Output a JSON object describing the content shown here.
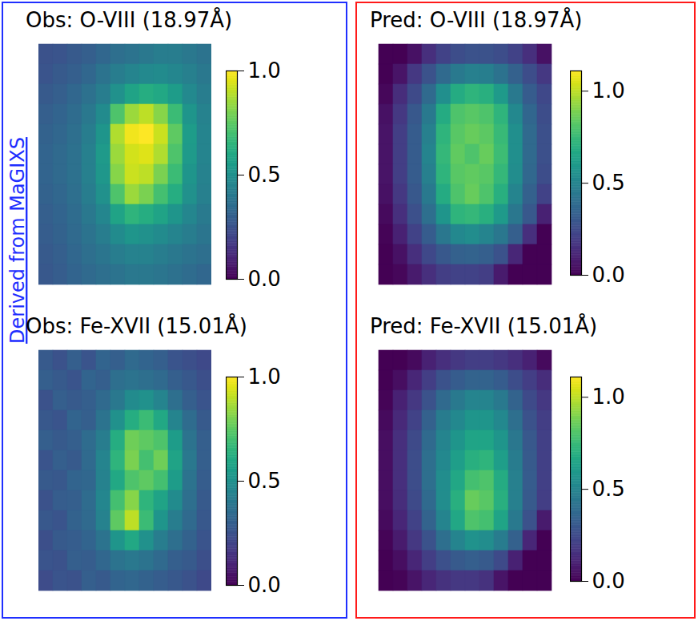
{
  "annotation": "Derived from MaGIXS",
  "chart_data": [
    {
      "type": "heatmap",
      "title": "Obs: O-VIII (18.97Å)",
      "color": "viridis",
      "tick_labels": false,
      "colorbar": {
        "range": [
          0,
          1
        ],
        "ticks": [
          {
            "value": 0,
            "label": "0.0"
          },
          {
            "value": 0.5,
            "label": "0.5"
          },
          {
            "value": 1,
            "label": "1.0"
          }
        ]
      },
      "cells": [
        [
          0.25,
          0.26,
          0.28,
          0.3,
          0.33,
          0.36,
          0.38,
          0.4,
          0.42,
          0.42,
          0.4,
          0.38
        ],
        [
          0.26,
          0.28,
          0.3,
          0.33,
          0.38,
          0.42,
          0.45,
          0.47,
          0.48,
          0.46,
          0.43,
          0.4
        ],
        [
          0.28,
          0.3,
          0.33,
          0.37,
          0.42,
          0.5,
          0.58,
          0.62,
          0.6,
          0.55,
          0.47,
          0.42
        ],
        [
          0.3,
          0.32,
          0.35,
          0.4,
          0.48,
          0.72,
          0.85,
          0.9,
          0.82,
          0.68,
          0.52,
          0.44
        ],
        [
          0.31,
          0.33,
          0.36,
          0.42,
          0.52,
          0.88,
          0.98,
          1.0,
          0.92,
          0.75,
          0.55,
          0.45
        ],
        [
          0.32,
          0.34,
          0.37,
          0.43,
          0.54,
          0.85,
          0.93,
          0.95,
          0.88,
          0.72,
          0.54,
          0.45
        ],
        [
          0.32,
          0.34,
          0.37,
          0.43,
          0.53,
          0.82,
          0.92,
          0.9,
          0.8,
          0.68,
          0.52,
          0.44
        ],
        [
          0.31,
          0.33,
          0.36,
          0.42,
          0.5,
          0.72,
          0.85,
          0.8,
          0.7,
          0.62,
          0.5,
          0.43
        ],
        [
          0.3,
          0.32,
          0.35,
          0.4,
          0.46,
          0.58,
          0.65,
          0.62,
          0.58,
          0.52,
          0.46,
          0.41
        ],
        [
          0.29,
          0.31,
          0.34,
          0.38,
          0.42,
          0.48,
          0.52,
          0.5,
          0.48,
          0.45,
          0.42,
          0.39
        ],
        [
          0.28,
          0.3,
          0.33,
          0.36,
          0.39,
          0.42,
          0.44,
          0.44,
          0.42,
          0.4,
          0.38,
          0.36
        ],
        [
          0.27,
          0.29,
          0.32,
          0.34,
          0.36,
          0.38,
          0.4,
          0.4,
          0.39,
          0.37,
          0.35,
          0.33
        ]
      ]
    },
    {
      "type": "heatmap",
      "title": "Obs: Fe-XVII (15.01Å)",
      "color": "viridis",
      "tick_labels": false,
      "colorbar": {
        "range": [
          0,
          1
        ],
        "ticks": [
          {
            "value": 0,
            "label": "0.0"
          },
          {
            "value": 0.5,
            "label": "0.5"
          },
          {
            "value": 1,
            "label": "1.0"
          }
        ]
      },
      "cells": [
        [
          0.28,
          0.25,
          0.3,
          0.26,
          0.32,
          0.3,
          0.34,
          0.32,
          0.3,
          0.26,
          0.24,
          0.22
        ],
        [
          0.3,
          0.28,
          0.26,
          0.32,
          0.3,
          0.36,
          0.38,
          0.36,
          0.34,
          0.3,
          0.27,
          0.24
        ],
        [
          0.25,
          0.3,
          0.28,
          0.3,
          0.34,
          0.4,
          0.48,
          0.5,
          0.45,
          0.36,
          0.3,
          0.26
        ],
        [
          0.27,
          0.26,
          0.32,
          0.3,
          0.38,
          0.5,
          0.62,
          0.68,
          0.6,
          0.45,
          0.35,
          0.28
        ],
        [
          0.3,
          0.28,
          0.3,
          0.35,
          0.42,
          0.62,
          0.78,
          0.75,
          0.72,
          0.55,
          0.38,
          0.3
        ],
        [
          0.26,
          0.3,
          0.28,
          0.34,
          0.45,
          0.65,
          0.8,
          0.7,
          0.78,
          0.58,
          0.4,
          0.3
        ],
        [
          0.28,
          0.27,
          0.32,
          0.33,
          0.44,
          0.6,
          0.72,
          0.75,
          0.7,
          0.55,
          0.38,
          0.29
        ],
        [
          0.25,
          0.29,
          0.3,
          0.35,
          0.46,
          0.7,
          0.82,
          0.65,
          0.58,
          0.48,
          0.36,
          0.28
        ],
        [
          0.27,
          0.26,
          0.31,
          0.34,
          0.44,
          0.75,
          0.9,
          0.68,
          0.52,
          0.42,
          0.34,
          0.27
        ],
        [
          0.24,
          0.28,
          0.29,
          0.32,
          0.38,
          0.52,
          0.6,
          0.5,
          0.42,
          0.36,
          0.31,
          0.26
        ],
        [
          0.26,
          0.25,
          0.3,
          0.29,
          0.33,
          0.38,
          0.4,
          0.38,
          0.34,
          0.3,
          0.28,
          0.24
        ],
        [
          0.23,
          0.26,
          0.25,
          0.3,
          0.28,
          0.32,
          0.33,
          0.31,
          0.29,
          0.27,
          0.25,
          0.22
        ]
      ]
    },
    {
      "type": "heatmap",
      "title": "Pred: O-VIII (18.97Å)",
      "color": "viridis",
      "tick_labels": false,
      "colorbar": {
        "range": [
          0,
          1.11
        ],
        "ticks": [
          {
            "value": 0,
            "label": "0.0"
          },
          {
            "value": 0.5,
            "label": "0.5"
          },
          {
            "value": 1,
            "label": "1.0"
          }
        ]
      },
      "cells": [
        [
          0.0,
          0.0,
          0.05,
          0.15,
          0.22,
          0.26,
          0.28,
          0.28,
          0.26,
          0.22,
          0.15,
          0.05
        ],
        [
          0.0,
          0.06,
          0.18,
          0.28,
          0.38,
          0.45,
          0.48,
          0.47,
          0.42,
          0.34,
          0.26,
          0.18
        ],
        [
          0.02,
          0.14,
          0.25,
          0.38,
          0.55,
          0.68,
          0.72,
          0.7,
          0.6,
          0.45,
          0.32,
          0.24
        ],
        [
          0.05,
          0.18,
          0.3,
          0.45,
          0.68,
          0.8,
          0.82,
          0.8,
          0.72,
          0.52,
          0.36,
          0.26
        ],
        [
          0.06,
          0.2,
          0.32,
          0.48,
          0.72,
          0.82,
          0.85,
          0.83,
          0.75,
          0.55,
          0.38,
          0.27
        ],
        [
          0.06,
          0.2,
          0.32,
          0.5,
          0.74,
          0.84,
          0.8,
          0.85,
          0.76,
          0.55,
          0.38,
          0.27
        ],
        [
          0.06,
          0.2,
          0.32,
          0.48,
          0.72,
          0.82,
          0.84,
          0.82,
          0.74,
          0.54,
          0.37,
          0.26
        ],
        [
          0.05,
          0.18,
          0.3,
          0.45,
          0.68,
          0.8,
          0.85,
          0.8,
          0.7,
          0.5,
          0.34,
          0.22
        ],
        [
          0.03,
          0.15,
          0.27,
          0.4,
          0.58,
          0.72,
          0.74,
          0.7,
          0.6,
          0.44,
          0.3,
          0.1
        ],
        [
          0.01,
          0.1,
          0.22,
          0.32,
          0.44,
          0.52,
          0.54,
          0.5,
          0.44,
          0.33,
          0.15,
          0.0
        ],
        [
          0.0,
          0.05,
          0.15,
          0.24,
          0.3,
          0.34,
          0.35,
          0.33,
          0.28,
          0.12,
          0.0,
          0.0
        ],
        [
          0.0,
          0.02,
          0.08,
          0.15,
          0.2,
          0.22,
          0.22,
          0.2,
          0.08,
          0.0,
          0.0,
          0.0
        ]
      ]
    },
    {
      "type": "heatmap",
      "title": "Pred: Fe-XVII (15.01Å)",
      "color": "viridis",
      "tick_labels": false,
      "colorbar": {
        "range": [
          0,
          1.11
        ],
        "ticks": [
          {
            "value": 0,
            "label": "0.0"
          },
          {
            "value": 0.5,
            "label": "0.5"
          },
          {
            "value": 1,
            "label": "1.0"
          }
        ]
      },
      "cells": [
        [
          0.0,
          0.0,
          0.03,
          0.1,
          0.15,
          0.18,
          0.2,
          0.2,
          0.18,
          0.15,
          0.1,
          0.03
        ],
        [
          0.0,
          0.04,
          0.12,
          0.2,
          0.28,
          0.32,
          0.35,
          0.35,
          0.32,
          0.26,
          0.2,
          0.14
        ],
        [
          0.01,
          0.1,
          0.18,
          0.28,
          0.38,
          0.45,
          0.5,
          0.5,
          0.45,
          0.35,
          0.25,
          0.18
        ],
        [
          0.03,
          0.13,
          0.22,
          0.34,
          0.46,
          0.52,
          0.58,
          0.58,
          0.52,
          0.4,
          0.28,
          0.2
        ],
        [
          0.04,
          0.15,
          0.25,
          0.38,
          0.5,
          0.58,
          0.65,
          0.65,
          0.58,
          0.44,
          0.3,
          0.21
        ],
        [
          0.04,
          0.15,
          0.26,
          0.4,
          0.52,
          0.62,
          0.7,
          0.72,
          0.62,
          0.46,
          0.31,
          0.21
        ],
        [
          0.04,
          0.15,
          0.26,
          0.4,
          0.54,
          0.66,
          0.78,
          0.8,
          0.68,
          0.48,
          0.32,
          0.21
        ],
        [
          0.04,
          0.14,
          0.25,
          0.38,
          0.54,
          0.7,
          0.85,
          0.82,
          0.7,
          0.48,
          0.31,
          0.2
        ],
        [
          0.03,
          0.12,
          0.22,
          0.35,
          0.5,
          0.66,
          0.8,
          0.78,
          0.65,
          0.45,
          0.28,
          0.08
        ],
        [
          0.01,
          0.08,
          0.18,
          0.28,
          0.4,
          0.5,
          0.56,
          0.54,
          0.46,
          0.34,
          0.12,
          0.0
        ],
        [
          0.0,
          0.04,
          0.12,
          0.2,
          0.27,
          0.31,
          0.33,
          0.31,
          0.25,
          0.1,
          0.0,
          0.0
        ],
        [
          0.0,
          0.01,
          0.06,
          0.12,
          0.16,
          0.18,
          0.18,
          0.16,
          0.06,
          0.0,
          0.0,
          0.0
        ]
      ]
    }
  ]
}
